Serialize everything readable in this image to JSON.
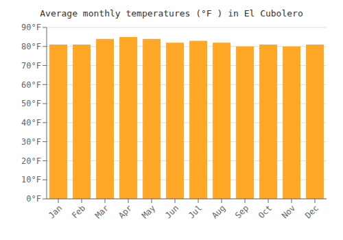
{
  "chart_data": {
    "type": "bar",
    "title": "Average monthly temperatures (°F ) in El Cubolero",
    "categories": [
      "Jan",
      "Feb",
      "Mar",
      "Apr",
      "May",
      "Jun",
      "Jul",
      "Aug",
      "Sep",
      "Oct",
      "Nov",
      "Dec"
    ],
    "values": [
      81,
      81,
      84,
      85,
      84,
      82,
      83,
      82,
      80,
      81,
      80,
      81
    ],
    "color": "#FFA726",
    "ylim": [
      0,
      90
    ],
    "yticks": [
      {
        "value": 0,
        "label": "0°F"
      },
      {
        "value": 10,
        "label": "10°F"
      },
      {
        "value": 20,
        "label": "20°F"
      },
      {
        "value": 30,
        "label": "30°F"
      },
      {
        "value": 40,
        "label": "40°F"
      },
      {
        "value": 50,
        "label": "50°F"
      },
      {
        "value": 60,
        "label": "60°F"
      },
      {
        "value": 70,
        "label": "70°F"
      },
      {
        "value": 80,
        "label": "80°F"
      },
      {
        "value": 90,
        "label": "90°F"
      }
    ],
    "grid": true
  }
}
